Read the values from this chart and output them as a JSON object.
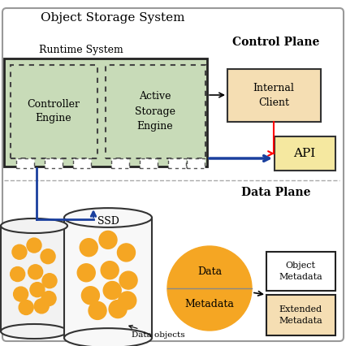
{
  "title": "Object Storage System",
  "bg_color": "#ffffff",
  "runtime_bg_color": "#c8dbb8",
  "engine_bg_color": "#c8dbb8",
  "client_box_color": "#f5deb3",
  "api_box_color": "#f5e8a0",
  "dot_color": "#f5a623",
  "control_plane_label": "Control Plane",
  "data_plane_label": "Data Plane",
  "runtime_label": "Runtime System",
  "controller_label": "Controller\nEngine",
  "active_storage_label": "Active\nStorage\nEngine",
  "internal_client_label": "Internal\nClient",
  "api_label": "API",
  "ssd_label": "SSD",
  "data_label": "Data",
  "metadata_label": "Metadata",
  "object_metadata_label": "Object\nMetadata",
  "extended_metadata_label": "Extended\nMetadata",
  "data_objects_label": "Data objects"
}
